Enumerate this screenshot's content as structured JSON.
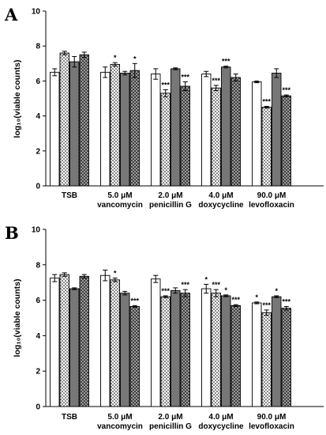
{
  "chart_data": [
    {
      "type": "bar",
      "panel_label": "A",
      "ylabel": "log₁₀(viable counts)",
      "ylim": [
        0,
        10
      ],
      "yticks": [
        "0",
        "2",
        "4",
        "6",
        "8",
        "10"
      ],
      "categories": [
        [
          "TSB",
          ""
        ],
        [
          "5.0 μM",
          "vancomycin"
        ],
        [
          "2.0 μM",
          "penicillin G"
        ],
        [
          "4.0 μM",
          "doxycycline"
        ],
        [
          "90.0 μM",
          "levofloxacin"
        ]
      ],
      "series": [
        {
          "pattern": "white",
          "values": [
            6.5,
            6.5,
            6.4,
            6.4,
            5.95
          ],
          "errors": [
            0.2,
            0.3,
            0.3,
            0.15,
            0.05
          ],
          "sig": [
            "",
            "",
            "",
            "",
            ""
          ]
        },
        {
          "pattern": "checker",
          "values": [
            7.6,
            6.95,
            5.3,
            5.6,
            4.5
          ],
          "errors": [
            0.1,
            0.1,
            0.2,
            0.15,
            0.05
          ],
          "sig": [
            "",
            "*",
            "***",
            "***",
            "***"
          ]
        },
        {
          "pattern": "gray",
          "values": [
            7.1,
            6.45,
            6.7,
            6.8,
            6.45
          ],
          "errors": [
            0.3,
            0.1,
            0.05,
            0.05,
            0.25
          ],
          "sig": [
            "",
            "",
            "",
            "***",
            ""
          ]
        },
        {
          "pattern": "dark-checker",
          "values": [
            7.5,
            6.6,
            5.7,
            6.2,
            5.15
          ],
          "errors": [
            0.15,
            0.4,
            0.25,
            0.2,
            0.05
          ],
          "sig": [
            "",
            "*",
            "***",
            "",
            "***"
          ]
        }
      ]
    },
    {
      "type": "bar",
      "panel_label": "B",
      "ylabel": "log₁₀(viable counts)",
      "ylim": [
        0,
        10
      ],
      "yticks": [
        "0",
        "2",
        "4",
        "6",
        "8",
        "10"
      ],
      "categories": [
        [
          "TSB",
          ""
        ],
        [
          "5.0 μM",
          "vancomycin"
        ],
        [
          "2.0 μM",
          "penicillin G"
        ],
        [
          "4.0 μM",
          "doxycycline"
        ],
        [
          "90.0 μM",
          "levofloxacin"
        ]
      ],
      "series": [
        {
          "pattern": "white",
          "values": [
            7.25,
            7.4,
            7.2,
            6.65,
            5.85
          ],
          "errors": [
            0.2,
            0.3,
            0.2,
            0.25,
            0.05
          ],
          "sig": [
            "",
            "",
            "",
            "*",
            "*"
          ]
        },
        {
          "pattern": "checker",
          "values": [
            7.45,
            7.15,
            6.2,
            6.4,
            5.3
          ],
          "errors": [
            0.1,
            0.1,
            0.05,
            0.2,
            0.15
          ],
          "sig": [
            "",
            "*",
            "***",
            "***",
            "***"
          ]
        },
        {
          "pattern": "gray",
          "values": [
            6.65,
            6.4,
            6.55,
            6.25,
            6.2
          ],
          "errors": [
            0.05,
            0.1,
            0.15,
            0.05,
            0.05
          ],
          "sig": [
            "",
            "",
            "",
            "*",
            "*"
          ]
        },
        {
          "pattern": "dark-checker",
          "values": [
            7.35,
            5.65,
            6.4,
            5.7,
            5.55
          ],
          "errors": [
            0.1,
            0.05,
            0.2,
            0.05,
            0.1
          ],
          "sig": [
            "",
            "***",
            "***",
            "***",
            "***"
          ]
        }
      ]
    }
  ]
}
